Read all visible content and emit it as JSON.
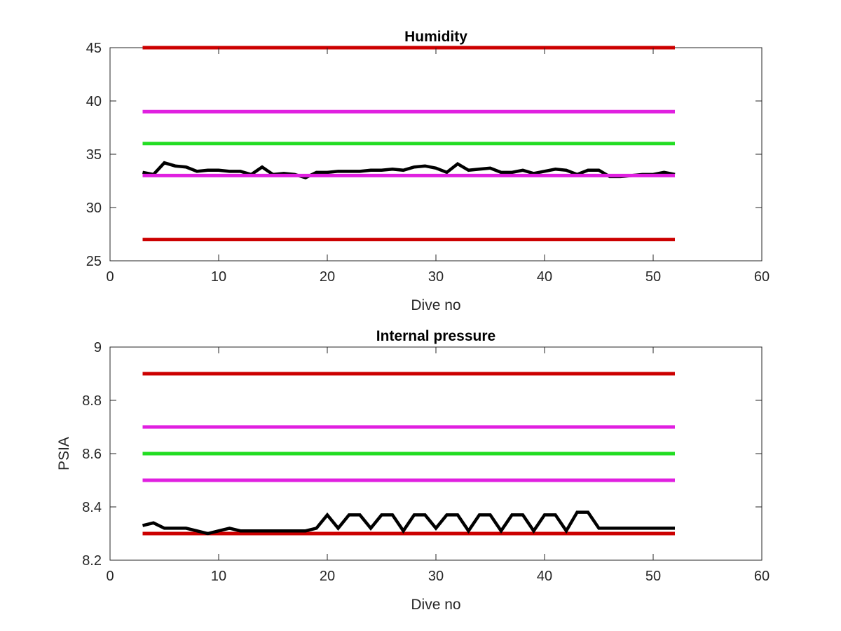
{
  "chart_data": [
    {
      "type": "line",
      "title": "Humidity",
      "xlabel": "Dive no",
      "ylabel": "",
      "xlim": [
        0,
        60
      ],
      "ylim": [
        25,
        45
      ],
      "xticks": [
        0,
        10,
        20,
        30,
        40,
        50,
        60
      ],
      "yticks": [
        25,
        30,
        35,
        40,
        45
      ],
      "grid": false,
      "series": [
        {
          "color": "#cc0000",
          "values": [
            [
              3,
              45
            ],
            [
              52,
              45
            ]
          ]
        },
        {
          "color": "#e020e0",
          "values": [
            [
              3,
              39
            ],
            [
              52,
              39
            ]
          ]
        },
        {
          "color": "#22dd22",
          "values": [
            [
              3,
              36
            ],
            [
              52,
              36
            ]
          ]
        },
        {
          "color": "#000000",
          "values": [
            [
              3,
              33.3
            ],
            [
              4,
              33.1
            ],
            [
              5,
              34.2
            ],
            [
              6,
              33.9
            ],
            [
              7,
              33.8
            ],
            [
              8,
              33.4
            ],
            [
              9,
              33.5
            ],
            [
              10,
              33.5
            ],
            [
              11,
              33.4
            ],
            [
              12,
              33.4
            ],
            [
              13,
              33.1
            ],
            [
              14,
              33.8
            ],
            [
              15,
              33.1
            ],
            [
              16,
              33.2
            ],
            [
              17,
              33.1
            ],
            [
              18,
              32.8
            ],
            [
              19,
              33.3
            ],
            [
              20,
              33.3
            ],
            [
              21,
              33.4
            ],
            [
              22,
              33.4
            ],
            [
              23,
              33.4
            ],
            [
              24,
              33.5
            ],
            [
              25,
              33.5
            ],
            [
              26,
              33.6
            ],
            [
              27,
              33.5
            ],
            [
              28,
              33.8
            ],
            [
              29,
              33.9
            ],
            [
              30,
              33.7
            ],
            [
              31,
              33.3
            ],
            [
              32,
              34.1
            ],
            [
              33,
              33.5
            ],
            [
              34,
              33.6
            ],
            [
              35,
              33.7
            ],
            [
              36,
              33.3
            ],
            [
              37,
              33.3
            ],
            [
              38,
              33.5
            ],
            [
              39,
              33.2
            ],
            [
              40,
              33.4
            ],
            [
              41,
              33.6
            ],
            [
              42,
              33.5
            ],
            [
              43,
              33.1
            ],
            [
              44,
              33.5
            ],
            [
              45,
              33.5
            ],
            [
              46,
              32.9
            ],
            [
              47,
              32.9
            ],
            [
              48,
              33.0
            ],
            [
              49,
              33.1
            ],
            [
              50,
              33.1
            ],
            [
              51,
              33.3
            ],
            [
              52,
              33.1
            ]
          ]
        },
        {
          "color": "#e020e0",
          "values": [
            [
              3,
              33
            ],
            [
              52,
              33
            ]
          ]
        },
        {
          "color": "#cc0000",
          "values": [
            [
              3,
              27
            ],
            [
              52,
              27
            ]
          ]
        }
      ]
    },
    {
      "type": "line",
      "title": "Internal pressure",
      "xlabel": "Dive no",
      "ylabel": "PSIA",
      "xlim": [
        0,
        60
      ],
      "ylim": [
        8.2,
        9
      ],
      "xticks": [
        0,
        10,
        20,
        30,
        40,
        50,
        60
      ],
      "yticks": [
        8.2,
        8.4,
        8.6,
        8.8,
        9
      ],
      "grid": false,
      "series": [
        {
          "color": "#cc0000",
          "values": [
            [
              3,
              8.9
            ],
            [
              52,
              8.9
            ]
          ]
        },
        {
          "color": "#e020e0",
          "values": [
            [
              3,
              8.7
            ],
            [
              52,
              8.7
            ]
          ]
        },
        {
          "color": "#22dd22",
          "values": [
            [
              3,
              8.6
            ],
            [
              52,
              8.6
            ]
          ]
        },
        {
          "color": "#e020e0",
          "values": [
            [
              3,
              8.5
            ],
            [
              52,
              8.5
            ]
          ]
        },
        {
          "color": "#cc0000",
          "values": [
            [
              3,
              8.3
            ],
            [
              52,
              8.3
            ]
          ]
        },
        {
          "color": "#000000",
          "values": [
            [
              3,
              8.33
            ],
            [
              4,
              8.34
            ],
            [
              5,
              8.32
            ],
            [
              6,
              8.32
            ],
            [
              7,
              8.32
            ],
            [
              8,
              8.31
            ],
            [
              9,
              8.3
            ],
            [
              10,
              8.31
            ],
            [
              11,
              8.32
            ],
            [
              12,
              8.31
            ],
            [
              13,
              8.31
            ],
            [
              14,
              8.31
            ],
            [
              15,
              8.31
            ],
            [
              16,
              8.31
            ],
            [
              17,
              8.31
            ],
            [
              18,
              8.31
            ],
            [
              19,
              8.32
            ],
            [
              20,
              8.37
            ],
            [
              21,
              8.32
            ],
            [
              22,
              8.37
            ],
            [
              23,
              8.37
            ],
            [
              24,
              8.32
            ],
            [
              25,
              8.37
            ],
            [
              26,
              8.37
            ],
            [
              27,
              8.31
            ],
            [
              28,
              8.37
            ],
            [
              29,
              8.37
            ],
            [
              30,
              8.32
            ],
            [
              31,
              8.37
            ],
            [
              32,
              8.37
            ],
            [
              33,
              8.31
            ],
            [
              34,
              8.37
            ],
            [
              35,
              8.37
            ],
            [
              36,
              8.31
            ],
            [
              37,
              8.37
            ],
            [
              38,
              8.37
            ],
            [
              39,
              8.31
            ],
            [
              40,
              8.37
            ],
            [
              41,
              8.37
            ],
            [
              42,
              8.31
            ],
            [
              43,
              8.38
            ],
            [
              44,
              8.38
            ],
            [
              45,
              8.32
            ],
            [
              46,
              8.32
            ],
            [
              47,
              8.32
            ],
            [
              48,
              8.32
            ],
            [
              49,
              8.32
            ],
            [
              50,
              8.32
            ],
            [
              51,
              8.32
            ],
            [
              52,
              8.32
            ]
          ]
        }
      ]
    }
  ]
}
